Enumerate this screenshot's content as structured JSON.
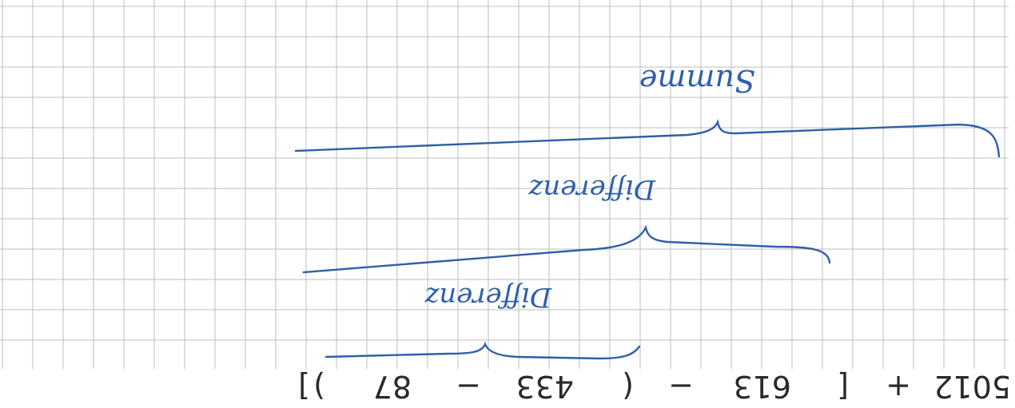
{
  "expression": [
    "5012",
    "+",
    "[",
    "613",
    "−",
    "(",
    "433",
    "−",
    "87",
    ")",
    "]"
  ],
  "annotations": {
    "inner": "Differenz",
    "middle": "Differenz",
    "outer": "Summe"
  },
  "colors": {
    "paper": "#ffffff",
    "grid": "#b9bcc0",
    "ink_pen": "#2f5fa8",
    "ink_print": "#2a2a2a"
  }
}
